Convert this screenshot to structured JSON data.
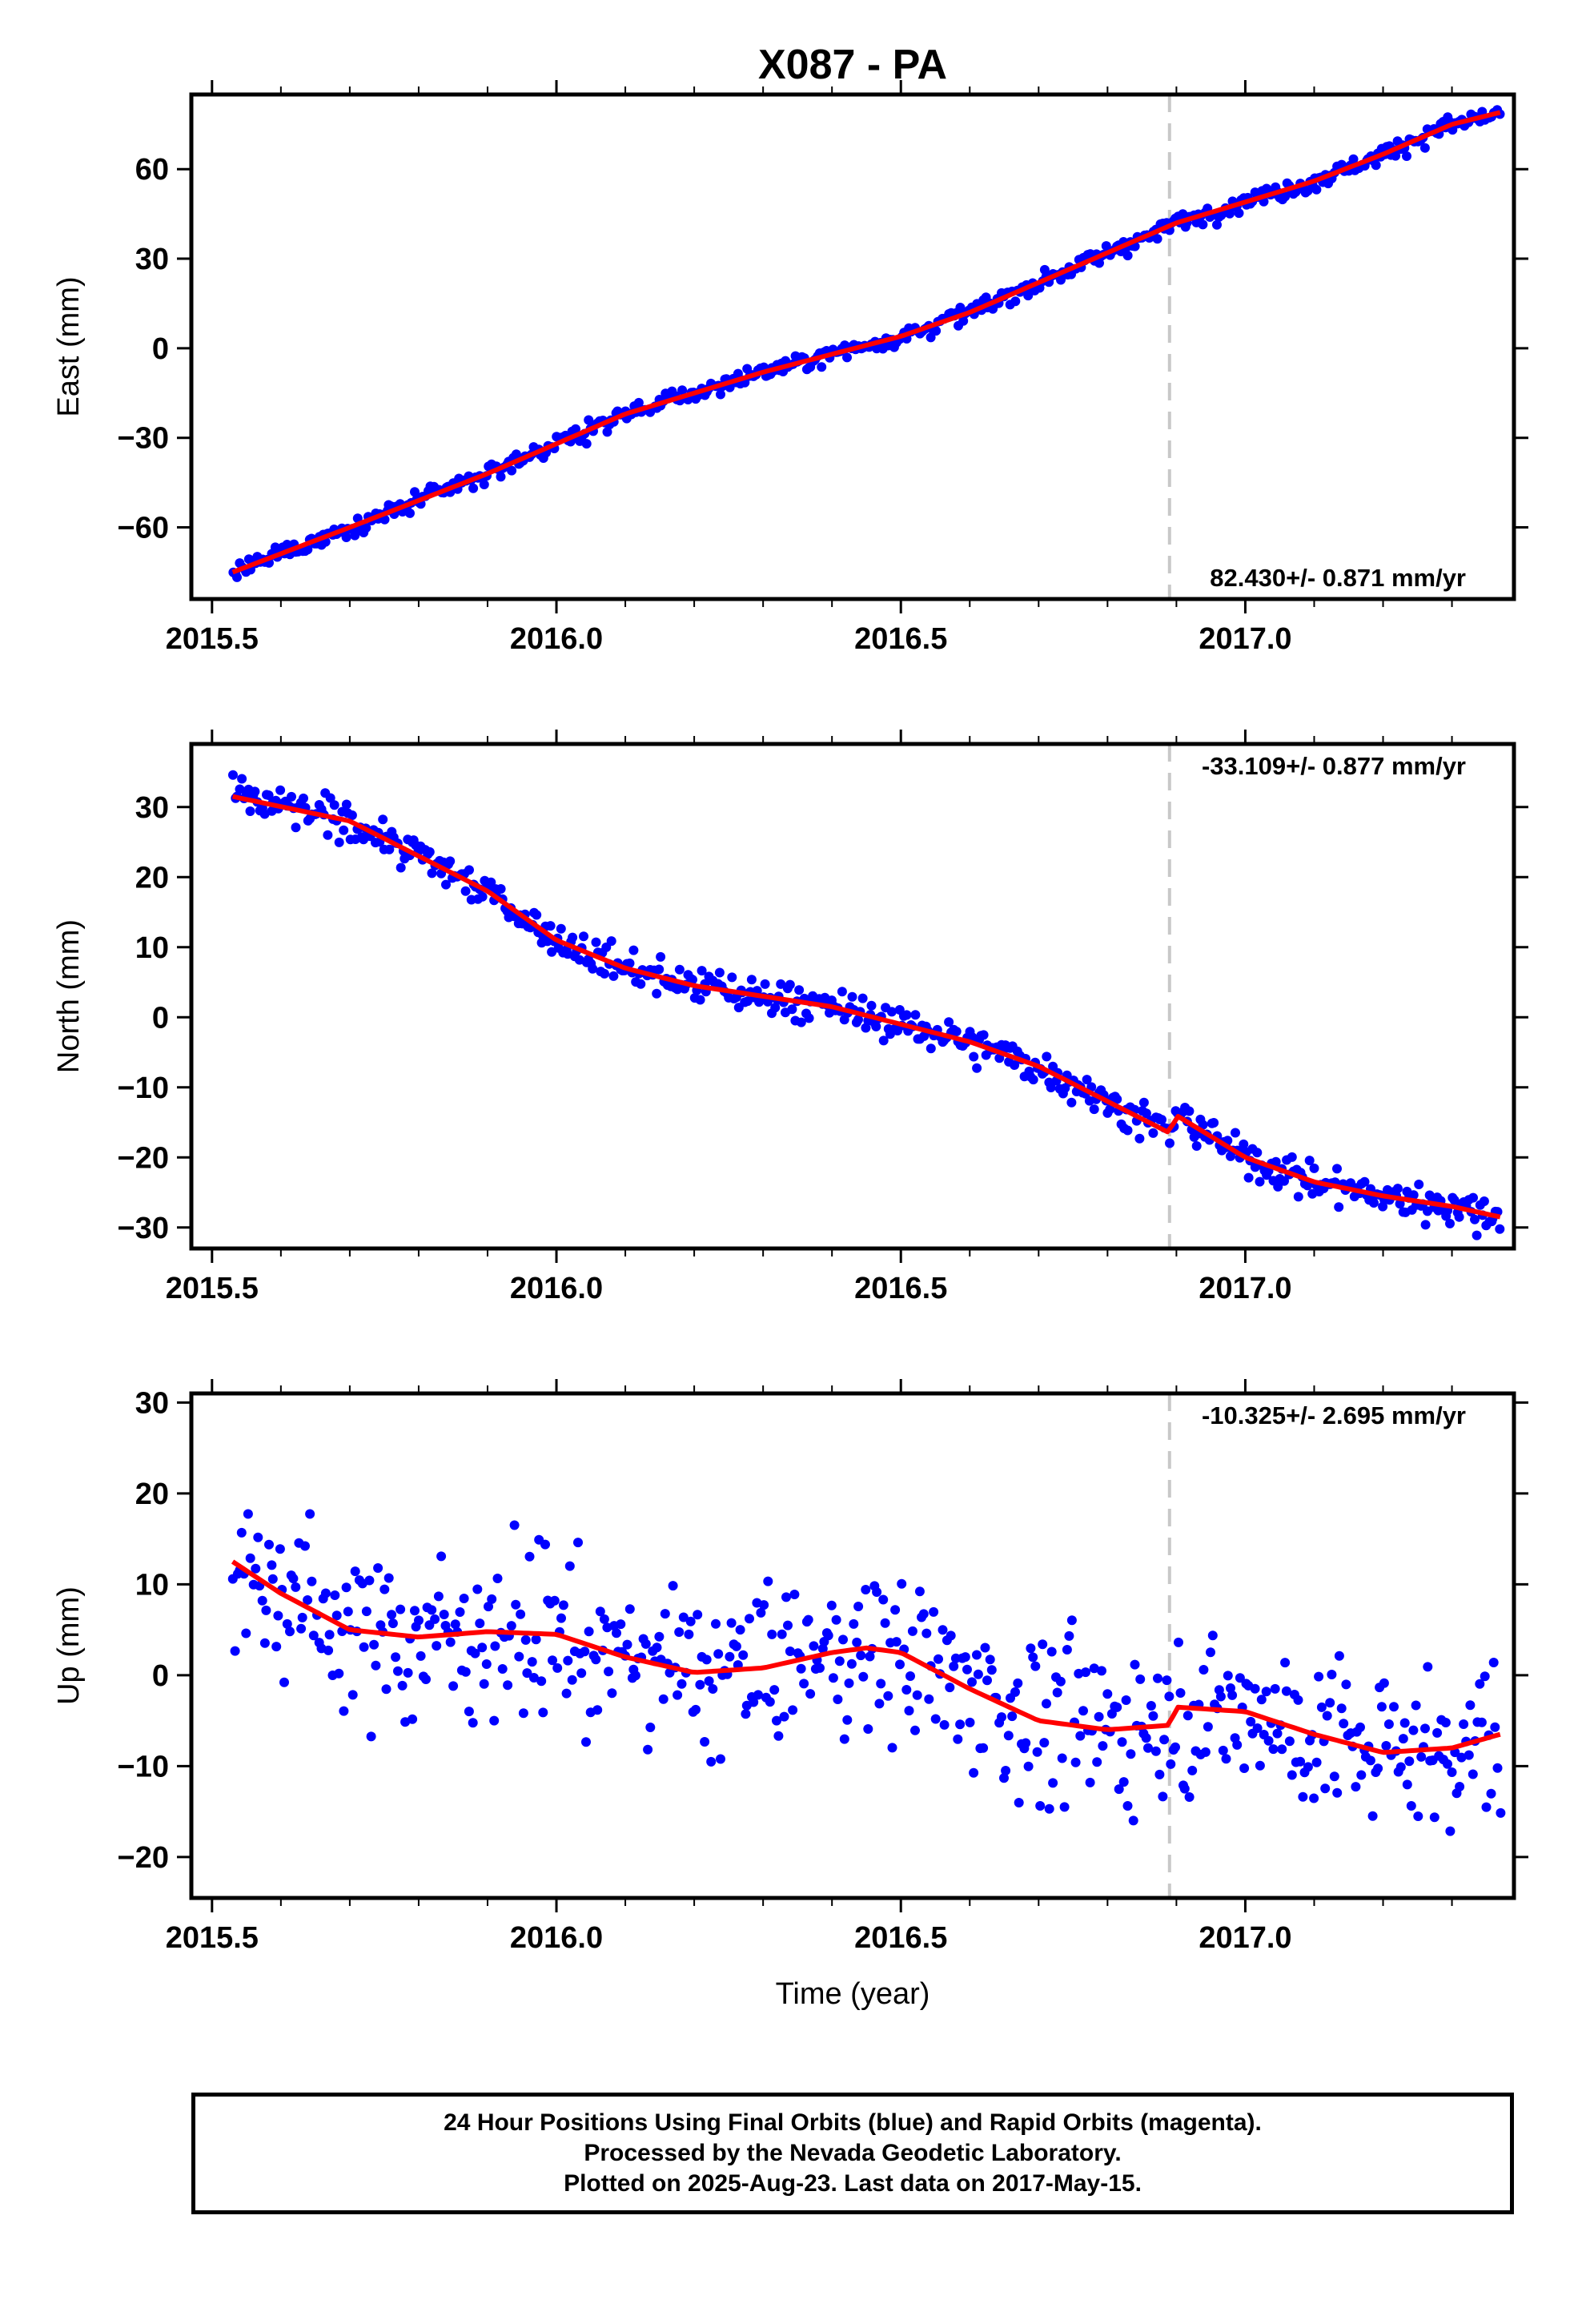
{
  "title": "X087 - PA",
  "x_axis_label": "Time (year)",
  "caption": [
    "24 Hour Positions Using Final Orbits (blue) and Rapid Orbits (magenta).",
    "Processed by the Nevada Geodetic Laboratory.",
    "Plotted on 2025-Aug-23. Last data on 2017-May-15."
  ],
  "colors": {
    "final_orbits": "#0000ff",
    "trend": "#ff0000",
    "event_line": "#c8c8c8"
  },
  "chart_data": [
    {
      "type": "scatter",
      "ylabel": "East (mm)",
      "xlim": [
        2015.47,
        2017.39
      ],
      "ylim": [
        -84,
        85
      ],
      "xticks": [
        2015.5,
        2016.0,
        2016.5,
        2017.0
      ],
      "xtick_labels": [
        "2015.5",
        "2016.0",
        "2016.5",
        "2017.0"
      ],
      "yticks": [
        60,
        30,
        0,
        -30,
        -60
      ],
      "ytick_labels": [
        "60",
        "30",
        "0",
        "−30",
        "−60"
      ],
      "rate_label": "82.430+/- 0.871 mm/yr",
      "rate_position": "bottom-right",
      "event_line_x": 2016.89,
      "data_start": 2015.53,
      "data_end": 2017.37,
      "model_trend": {
        "x": [
          2015.53,
          2015.7,
          2015.9,
          2016.1,
          2016.3,
          2016.4,
          2016.5,
          2016.6,
          2016.7,
          2016.8,
          2016.9,
          2017.0,
          2017.1,
          2017.2,
          2017.3,
          2017.37
        ],
        "y": [
          -75,
          -60,
          -42,
          -22,
          -8,
          -2,
          4,
          12,
          22,
          32,
          42,
          49,
          56,
          65,
          75,
          79
        ]
      },
      "scatter_noise_mm": 1.5
    },
    {
      "type": "scatter",
      "ylabel": "North (mm)",
      "xlim": [
        2015.47,
        2017.39
      ],
      "ylim": [
        -33,
        39
      ],
      "xticks": [
        2015.5,
        2016.0,
        2016.5,
        2017.0
      ],
      "xtick_labels": [
        "2015.5",
        "2016.0",
        "2016.5",
        "2017.0"
      ],
      "yticks": [
        30,
        20,
        10,
        0,
        -10,
        -20,
        -30
      ],
      "ytick_labels": [
        "30",
        "20",
        "10",
        "0",
        "−10",
        "−20",
        "−30"
      ],
      "rate_label": "-33.109+/- 0.877 mm/yr",
      "rate_position": "top-right",
      "event_line_x": 2016.89,
      "data_start": 2015.53,
      "data_end": 2017.37,
      "model_trend": {
        "x": [
          2015.53,
          2015.7,
          2015.9,
          2016.0,
          2016.1,
          2016.2,
          2016.3,
          2016.4,
          2016.5,
          2016.6,
          2016.7,
          2016.8,
          2016.89,
          2016.9,
          2017.0,
          2017.1,
          2017.2,
          2017.3,
          2017.37
        ],
        "y": [
          31.5,
          28,
          18,
          11,
          7,
          4.5,
          3,
          1.5,
          -1,
          -3.5,
          -7,
          -12,
          -16.5,
          -14,
          -20,
          -23.5,
          -25.5,
          -27,
          -28.5
        ]
      },
      "scatter_noise_mm": 1.3
    },
    {
      "type": "scatter",
      "ylabel": "Up (mm)",
      "xlim": [
        2015.47,
        2017.39
      ],
      "ylim": [
        -24.5,
        31
      ],
      "xticks": [
        2015.5,
        2016.0,
        2016.5,
        2017.0
      ],
      "xtick_labels": [
        "2015.5",
        "2016.0",
        "2016.5",
        "2017.0"
      ],
      "yticks": [
        30,
        20,
        10,
        0,
        -10,
        -20
      ],
      "ytick_labels": [
        "30",
        "20",
        "10",
        "0",
        "−10",
        "−20"
      ],
      "rate_label": "-10.325+/- 2.695 mm/yr",
      "rate_position": "top-right",
      "event_line_x": 2016.89,
      "data_start": 2015.53,
      "data_end": 2017.37,
      "model_trend": {
        "x": [
          2015.53,
          2015.6,
          2015.7,
          2015.8,
          2015.9,
          2016.0,
          2016.1,
          2016.2,
          2016.3,
          2016.4,
          2016.45,
          2016.5,
          2016.6,
          2016.7,
          2016.8,
          2016.89,
          2016.9,
          2017.0,
          2017.1,
          2017.2,
          2017.3,
          2017.37
        ],
        "y": [
          12.5,
          9,
          5,
          4.2,
          4.8,
          4.5,
          2,
          0.3,
          0.8,
          2.5,
          3,
          2.5,
          -1.5,
          -5,
          -6,
          -5.5,
          -3.5,
          -4,
          -6.5,
          -8.5,
          -8,
          -6.5
        ]
      },
      "scatter_noise_mm": 4.5
    }
  ]
}
